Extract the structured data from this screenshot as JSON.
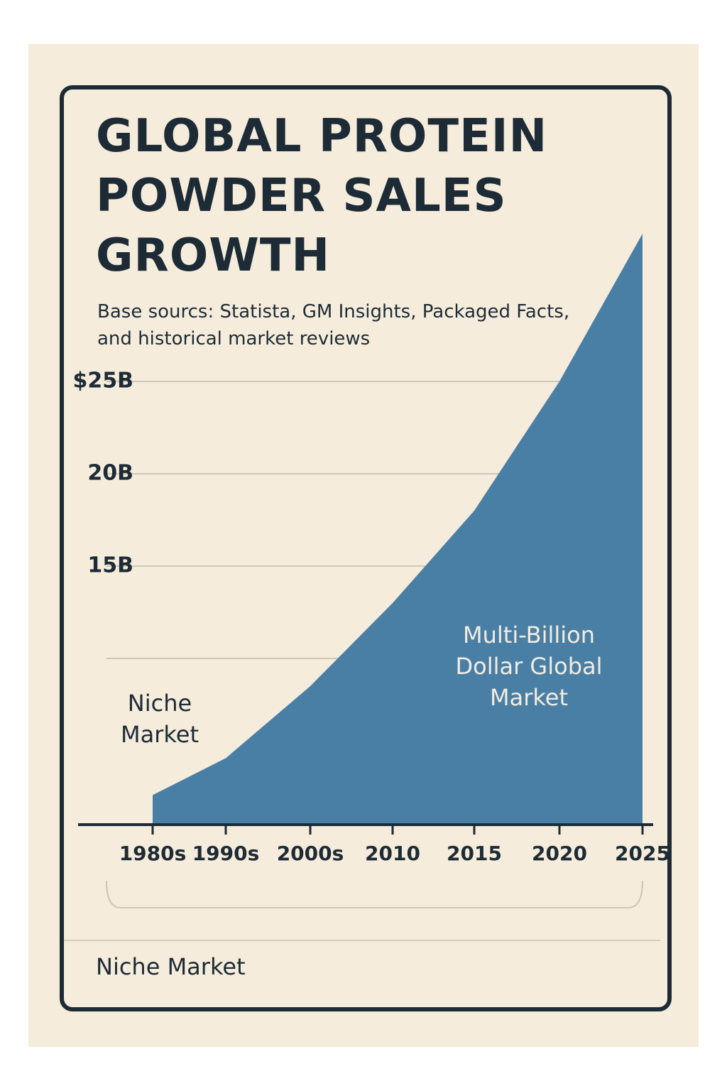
{
  "chart_data": {
    "type": "area",
    "title": "GLOBAL PROTEIN POWDER SALES GROWTH",
    "subtitle": "Base sourcs: Statista, GM Insights, Packaged Facts, and historical market reviews",
    "categories": [
      "1980s",
      "1990s",
      "2000s",
      "2010",
      "2015",
      "2020",
      "2025"
    ],
    "values": [
      2.6,
      4.6,
      8.5,
      13,
      18,
      25,
      33
    ],
    "color": "#4a7fa5",
    "ylim": [
      1,
      34
    ],
    "yticks": [
      {
        "value": 10,
        "label": null
      },
      {
        "value": 15,
        "label": "15B"
      },
      {
        "value": 20,
        "label": "20B"
      },
      {
        "value": 25,
        "label": "$25B"
      }
    ],
    "grid": true,
    "annotations": [
      "Niche Market",
      "Multi-Billion Dollar Global Market"
    ],
    "footer": "Niche Market"
  }
}
